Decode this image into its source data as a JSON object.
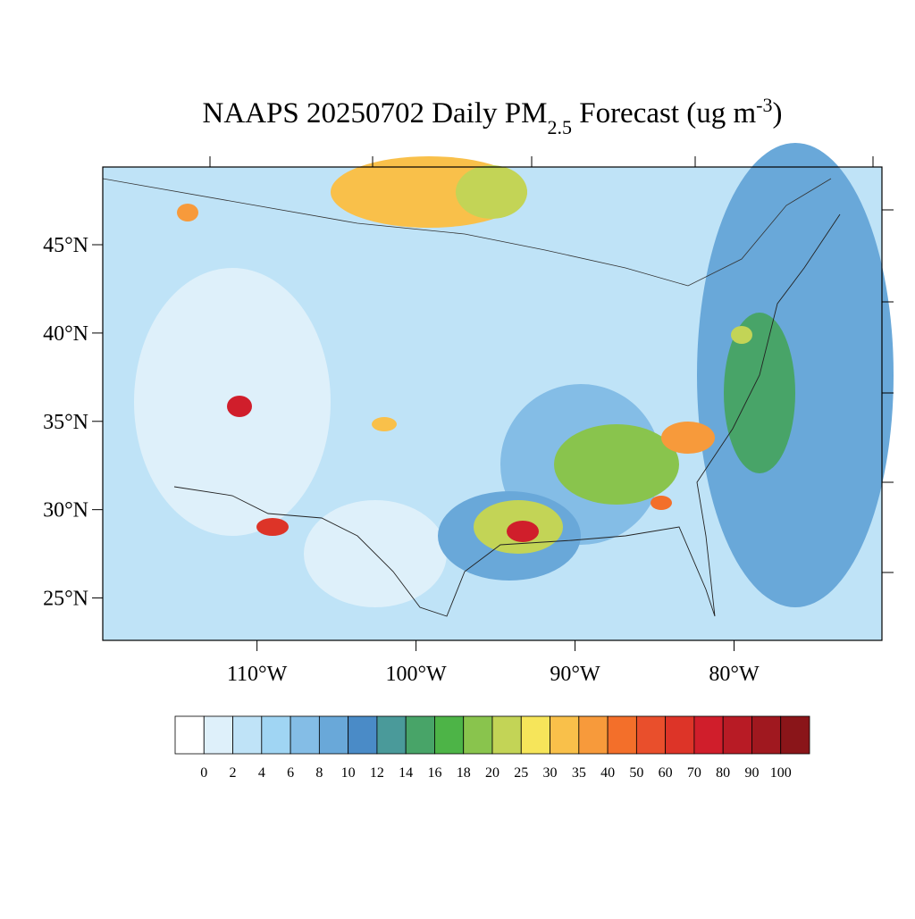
{
  "chart_data": {
    "type": "map",
    "title_parts": [
      "NAAPS 20250702 Daily PM",
      "2.5",
      " Forecast (ug m",
      "-3",
      ")"
    ],
    "xlim": [
      -119.7,
      -70.7
    ],
    "ylim": [
      22.6,
      49.4
    ],
    "xticks": [
      {
        "value": -110,
        "label": "110°W"
      },
      {
        "value": -100,
        "label": "100°W"
      },
      {
        "value": -90,
        "label": "90°W"
      },
      {
        "value": -80,
        "label": "80°W"
      }
    ],
    "yticks": [
      {
        "value": 45,
        "label": "45°N"
      },
      {
        "value": 40,
        "label": "40°N"
      },
      {
        "value": 35,
        "label": "35°N"
      },
      {
        "value": 30,
        "label": "30°N"
      },
      {
        "value": 25,
        "label": "25°N"
      }
    ],
    "levels": [
      0,
      2,
      4,
      6,
      8,
      10,
      12,
      14,
      16,
      18,
      20,
      25,
      30,
      35,
      40,
      50,
      60,
      70,
      80,
      90,
      100
    ],
    "colors": [
      "#ffffff",
      "#def0fa",
      "#bfe3f7",
      "#a0d5f3",
      "#84bde6",
      "#69a8d9",
      "#4a8bc7",
      "#4a9a9a",
      "#48a468",
      "#4db447",
      "#89c44d",
      "#c3d456",
      "#f6e55a",
      "#f9c04a",
      "#f79a3b",
      "#f36f2a",
      "#e94f2c",
      "#dd3428",
      "#d01e2b",
      "#b81b25",
      "#a0181f",
      "#8a1519"
    ]
  }
}
